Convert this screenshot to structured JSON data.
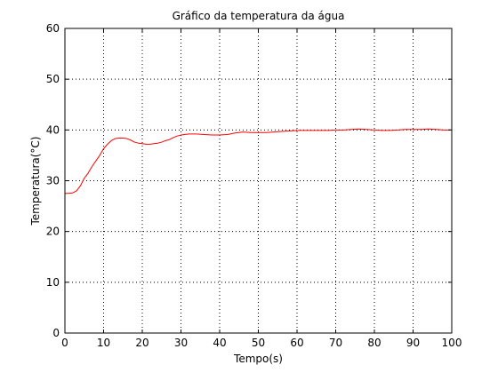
{
  "chart_data": {
    "type": "line",
    "title": "Gráfico da temperatura da água",
    "xlabel": "Tempo(s)",
    "ylabel": "Temperatura(°C)",
    "xlim": [
      0,
      100
    ],
    "ylim": [
      0,
      60
    ],
    "xticks": [
      0,
      10,
      20,
      30,
      40,
      50,
      60,
      70,
      80,
      90,
      100
    ],
    "yticks": [
      0,
      10,
      20,
      30,
      40,
      50,
      60
    ],
    "grid": true,
    "colors": {
      "line": "#ff0000",
      "grid": "#000000",
      "axes": "#000000",
      "background": "#ffffff"
    },
    "series": [
      {
        "x": [
          0,
          1,
          2,
          3,
          4,
          5,
          6,
          7,
          8,
          9,
          10,
          11,
          12,
          13,
          14,
          15,
          16,
          17,
          18,
          19,
          20,
          21,
          22,
          23,
          24,
          25,
          26,
          27,
          28,
          29,
          30,
          32,
          34,
          36,
          38,
          40,
          42,
          44,
          46,
          48,
          50,
          52,
          54,
          56,
          58,
          60,
          62,
          64,
          66,
          68,
          70,
          72,
          74,
          76,
          78,
          80,
          82,
          84,
          86,
          88,
          90,
          92,
          94,
          96,
          98,
          100
        ],
        "values": [
          27.5,
          27.5,
          27.6,
          28.0,
          29.0,
          30.5,
          31.5,
          32.8,
          33.9,
          35.0,
          36.3,
          37.2,
          37.9,
          38.3,
          38.4,
          38.4,
          38.3,
          38.0,
          37.6,
          37.4,
          37.3,
          37.2,
          37.2,
          37.3,
          37.4,
          37.6,
          37.9,
          38.1,
          38.5,
          38.8,
          39.0,
          39.2,
          39.2,
          39.1,
          39.0,
          39.0,
          39.1,
          39.4,
          39.6,
          39.5,
          39.5,
          39.5,
          39.6,
          39.7,
          39.8,
          39.9,
          39.9,
          39.9,
          39.9,
          39.9,
          40.0,
          40.0,
          40.1,
          40.2,
          40.1,
          40.0,
          39.9,
          39.9,
          40.0,
          40.1,
          40.1,
          40.1,
          40.2,
          40.1,
          40.0,
          40.0
        ]
      }
    ]
  }
}
